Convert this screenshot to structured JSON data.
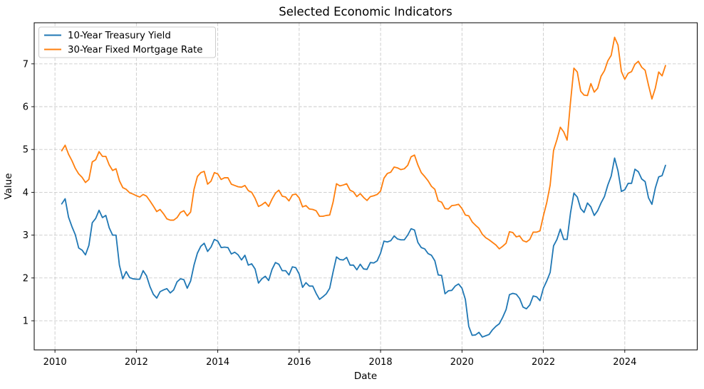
{
  "chart_data": {
    "type": "line",
    "title": "Selected Economic Indicators",
    "xlabel": "Date",
    "ylabel": "Value",
    "x_start": "2010-03",
    "x_end": "2025-01",
    "frequency": "monthly",
    "xlim": [
      2009.49,
      2025.78
    ],
    "ylim": [
      0.32,
      7.96
    ],
    "xticks": [
      "2010",
      "2012",
      "2014",
      "2016",
      "2018",
      "2020",
      "2022",
      "2024"
    ],
    "yticks": [
      "1",
      "2",
      "3",
      "4",
      "5",
      "6",
      "7"
    ],
    "grid": true,
    "grid_style": "dashed",
    "legend_position": "upper left",
    "background_color": "#ffffff",
    "series": [
      {
        "name": "10-Year Treasury Yield",
        "color": "#1f77b4",
        "values": [
          3.73,
          3.85,
          3.42,
          3.2,
          3.01,
          2.7,
          2.65,
          2.54,
          2.76,
          3.29,
          3.39,
          3.58,
          3.41,
          3.46,
          3.17,
          3.0,
          3.0,
          2.3,
          1.98,
          2.15,
          2.01,
          1.98,
          1.97,
          1.97,
          2.17,
          2.05,
          1.8,
          1.62,
          1.53,
          1.68,
          1.72,
          1.75,
          1.65,
          1.72,
          1.91,
          1.98,
          1.96,
          1.76,
          1.93,
          2.3,
          2.58,
          2.74,
          2.81,
          2.62,
          2.72,
          2.9,
          2.86,
          2.71,
          2.72,
          2.71,
          2.56,
          2.6,
          2.54,
          2.42,
          2.53,
          2.3,
          2.33,
          2.21,
          1.88,
          1.98,
          2.04,
          1.94,
          2.2,
          2.36,
          2.32,
          2.17,
          2.17,
          2.07,
          2.26,
          2.24,
          2.09,
          1.78,
          1.89,
          1.81,
          1.81,
          1.64,
          1.5,
          1.56,
          1.63,
          1.76,
          2.14,
          2.49,
          2.43,
          2.42,
          2.48,
          2.3,
          2.3,
          2.19,
          2.32,
          2.21,
          2.2,
          2.36,
          2.35,
          2.4,
          2.58,
          2.86,
          2.84,
          2.87,
          2.98,
          2.91,
          2.89,
          2.89,
          3.0,
          3.15,
          3.12,
          2.83,
          2.71,
          2.68,
          2.57,
          2.53,
          2.4,
          2.07,
          2.06,
          1.63,
          1.7,
          1.71,
          1.81,
          1.86,
          1.76,
          1.5,
          0.87,
          0.66,
          0.67,
          0.73,
          0.62,
          0.65,
          0.68,
          0.79,
          0.87,
          0.93,
          1.08,
          1.26,
          1.61,
          1.64,
          1.62,
          1.52,
          1.32,
          1.28,
          1.37,
          1.58,
          1.56,
          1.47,
          1.76,
          1.93,
          2.13,
          2.75,
          2.9,
          3.14,
          2.9,
          2.9,
          3.52,
          3.98,
          3.89,
          3.62,
          3.53,
          3.75,
          3.66,
          3.46,
          3.57,
          3.75,
          3.9,
          4.17,
          4.38,
          4.8,
          4.5,
          4.02,
          4.06,
          4.21,
          4.21,
          4.54,
          4.48,
          4.31,
          4.25,
          3.87,
          3.72,
          4.1,
          4.36,
          4.39,
          4.63
        ]
      },
      {
        "name": "30-Year Fixed Mortgage Rate",
        "color": "#ff7f0e",
        "values": [
          4.97,
          5.1,
          4.89,
          4.74,
          4.56,
          4.43,
          4.35,
          4.23,
          4.3,
          4.71,
          4.76,
          4.95,
          4.84,
          4.84,
          4.64,
          4.51,
          4.55,
          4.27,
          4.11,
          4.07,
          3.99,
          3.96,
          3.92,
          3.89,
          3.95,
          3.91,
          3.8,
          3.68,
          3.55,
          3.6,
          3.5,
          3.38,
          3.35,
          3.35,
          3.41,
          3.53,
          3.57,
          3.45,
          3.54,
          4.07,
          4.37,
          4.46,
          4.49,
          4.19,
          4.26,
          4.46,
          4.43,
          4.3,
          4.34,
          4.34,
          4.19,
          4.16,
          4.13,
          4.12,
          4.16,
          4.04,
          4.0,
          3.86,
          3.67,
          3.71,
          3.77,
          3.67,
          3.84,
          3.98,
          4.05,
          3.91,
          3.89,
          3.8,
          3.94,
          3.96,
          3.87,
          3.66,
          3.69,
          3.61,
          3.6,
          3.57,
          3.44,
          3.44,
          3.46,
          3.47,
          3.77,
          4.2,
          4.15,
          4.17,
          4.2,
          4.05,
          4.01,
          3.9,
          3.97,
          3.88,
          3.81,
          3.9,
          3.92,
          3.95,
          4.03,
          4.33,
          4.44,
          4.47,
          4.59,
          4.57,
          4.53,
          4.55,
          4.63,
          4.83,
          4.87,
          4.64,
          4.46,
          4.37,
          4.27,
          4.14,
          4.07,
          3.8,
          3.77,
          3.62,
          3.61,
          3.69,
          3.7,
          3.72,
          3.62,
          3.47,
          3.45,
          3.31,
          3.23,
          3.16,
          3.02,
          2.94,
          2.89,
          2.83,
          2.77,
          2.68,
          2.74,
          2.81,
          3.08,
          3.06,
          2.96,
          2.98,
          2.87,
          2.84,
          2.9,
          3.07,
          3.07,
          3.1,
          3.45,
          3.76,
          4.17,
          4.98,
          5.23,
          5.52,
          5.41,
          5.22,
          6.11,
          6.9,
          6.81,
          6.36,
          6.27,
          6.26,
          6.54,
          6.34,
          6.43,
          6.71,
          6.84,
          7.07,
          7.2,
          7.62,
          7.44,
          6.82,
          6.64,
          6.78,
          6.82,
          6.99,
          7.06,
          6.92,
          6.85,
          6.5,
          6.18,
          6.43,
          6.81,
          6.72,
          6.96
        ]
      }
    ]
  },
  "legend": {
    "entries": [
      "10-Year Treasury Yield",
      "30-Year Fixed Mortgage Rate"
    ]
  },
  "colors": {
    "grid": "#c9c9c9",
    "spine": "#000000",
    "background": "#ffffff"
  }
}
